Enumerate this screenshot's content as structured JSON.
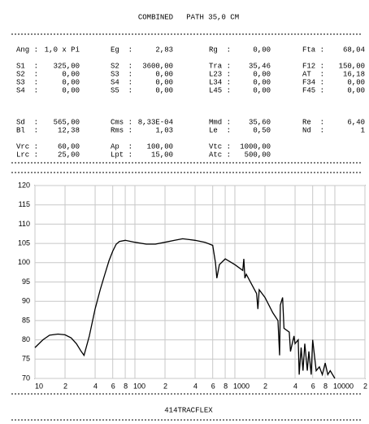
{
  "header": {
    "title": "COMBINED   PATH 35,0 CM"
  },
  "params": {
    "rows": [
      [
        {
          "label": "Ang :",
          "value": "1,0 x Pi"
        },
        {
          "label": "Eg  :",
          "value": "2,83"
        },
        {
          "label": "Rg  :",
          "value": "0,00"
        },
        {
          "label": "Fta :",
          "value": "68,04"
        }
      ],
      [
        {
          "label": "S1  :",
          "value": "325,00"
        },
        {
          "label": "S2  :",
          "value": "3600,00"
        },
        {
          "label": "Tra :",
          "value": "35,46"
        },
        {
          "label": "F12 :",
          "value": "150,00"
        }
      ],
      [
        {
          "label": "S2  :",
          "value": "0,00"
        },
        {
          "label": "S3  :",
          "value": "0,00"
        },
        {
          "label": "L23 :",
          "value": "0,00"
        },
        {
          "label": "AT  :",
          "value": "16,18"
        }
      ],
      [
        {
          "label": "S3  :",
          "value": "0,00"
        },
        {
          "label": "S4  :",
          "value": "0,00"
        },
        {
          "label": "L34 :",
          "value": "0,00"
        },
        {
          "label": "F34 :",
          "value": "0,00"
        }
      ],
      [
        {
          "label": "S4  :",
          "value": "0,00"
        },
        {
          "label": "S5  :",
          "value": "0,00"
        },
        {
          "label": "L45 :",
          "value": "0,00"
        },
        {
          "label": "F45 :",
          "value": "0,00"
        }
      ],
      [
        {
          "label": "Sd  :",
          "value": "565,00"
        },
        {
          "label": "Cms :",
          "value": "8,33E-04"
        },
        {
          "label": "Mmd :",
          "value": "35,60"
        },
        {
          "label": "Re  :",
          "value": "6,40"
        }
      ],
      [
        {
          "label": "Bl  :",
          "value": "12,38"
        },
        {
          "label": "Rms :",
          "value": "1,03"
        },
        {
          "label": "Le  :",
          "value": "0,50"
        },
        {
          "label": "Nd  :",
          "value": "1"
        }
      ],
      [
        {
          "label": "Vrc :",
          "value": "60,00"
        },
        {
          "label": "Ap  :",
          "value": "100,00"
        },
        {
          "label": "Vtc :",
          "value": "1000,00"
        }
      ],
      [
        {
          "label": "Lrc :",
          "value": "25,00"
        },
        {
          "label": "Lpt :",
          "value": "15,00"
        },
        {
          "label": "Atc :",
          "value": "500,00"
        }
      ]
    ]
  },
  "chart_data": {
    "type": "line",
    "color": "#000000",
    "xscale": "log",
    "grid": true,
    "x": [
      10,
      12,
      14,
      17,
      20,
      23,
      26,
      29,
      31,
      35,
      40,
      45,
      50,
      55,
      60,
      65,
      70,
      80,
      100,
      130,
      160,
      200,
      250,
      300,
      350,
      400,
      500,
      600,
      640,
      660,
      700,
      800,
      1000,
      1200,
      1230,
      1260,
      1300,
      1500,
      1650,
      1700,
      1750,
      2000,
      2400,
      2700,
      2800,
      2850,
      3000,
      3100,
      3500,
      3600,
      3900,
      4000,
      4300,
      4400,
      4600,
      4800,
      5000,
      5300,
      5500,
      5800,
      6000,
      6500,
      7000,
      7500,
      8000,
      8500,
      9000,
      10000
    ],
    "values": [
      78,
      80,
      81.2,
      81.5,
      81.3,
      80.5,
      79,
      77,
      76,
      81,
      88,
      93,
      97,
      100.5,
      103,
      104.8,
      105.5,
      105.8,
      105.3,
      104.8,
      104.8,
      105.3,
      105.8,
      106.2,
      106,
      105.8,
      105.3,
      104.5,
      100,
      96,
      99.5,
      101,
      99.5,
      98,
      101,
      96,
      97,
      94,
      92,
      88,
      93,
      91,
      87,
      85,
      76,
      89,
      91,
      83,
      82,
      77,
      81,
      79,
      80,
      71,
      78,
      72,
      79,
      72,
      77,
      71,
      80,
      72,
      73,
      71,
      74,
      71,
      72,
      70
    ],
    "xlim": [
      10,
      20000
    ],
    "ylim": [
      70,
      120
    ],
    "xticks": [
      10,
      {
        "value": 20,
        "label": "2"
      },
      {
        "value": 40,
        "label": "4"
      },
      {
        "value": 60,
        "label": "6"
      },
      {
        "value": 80,
        "label": "8"
      },
      100,
      {
        "value": 200,
        "label": "2"
      },
      {
        "value": 400,
        "label": "4"
      },
      {
        "value": 600,
        "label": "6"
      },
      {
        "value": 800,
        "label": "8"
      },
      1000,
      {
        "value": 2000,
        "label": "2"
      },
      {
        "value": 4000,
        "label": "4"
      },
      {
        "value": 6000,
        "label": "6"
      },
      {
        "value": 8000,
        "label": "8"
      },
      10000,
      {
        "value": 20000,
        "label": "2"
      }
    ],
    "yticks": [
      70,
      75,
      80,
      85,
      90,
      95,
      100,
      105,
      110,
      115,
      120
    ]
  },
  "footer": {
    "text": "414TRACFLEX"
  }
}
